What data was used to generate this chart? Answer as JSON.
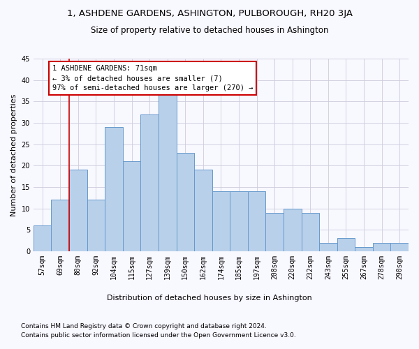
{
  "title": "1, ASHDENE GARDENS, ASHINGTON, PULBOROUGH, RH20 3JA",
  "subtitle": "Size of property relative to detached houses in Ashington",
  "xlabel_bottom": "Distribution of detached houses by size in Ashington",
  "ylabel": "Number of detached properties",
  "categories": [
    "57sqm",
    "69sqm",
    "80sqm",
    "92sqm",
    "104sqm",
    "115sqm",
    "127sqm",
    "139sqm",
    "150sqm",
    "162sqm",
    "174sqm",
    "185sqm",
    "197sqm",
    "208sqm",
    "220sqm",
    "232sqm",
    "243sqm",
    "255sqm",
    "267sqm",
    "278sqm",
    "290sqm"
  ],
  "values": [
    6,
    12,
    19,
    12,
    29,
    21,
    32,
    37,
    23,
    19,
    14,
    14,
    14,
    9,
    10,
    9,
    2,
    3,
    1,
    2,
    2
  ],
  "bar_color": "#b8d0ea",
  "bar_edge_color": "#6699cc",
  "annotation_text_line1": "1 ASHDENE GARDENS: 71sqm",
  "annotation_text_line2": "← 3% of detached houses are smaller (7)",
  "annotation_text_line3": "97% of semi-detached houses are larger (270) →",
  "annotation_box_color": "#ffffff",
  "annotation_box_edge_color": "#cc0000",
  "vline_color": "#cc0000",
  "ylim": [
    0,
    45
  ],
  "yticks": [
    0,
    5,
    10,
    15,
    20,
    25,
    30,
    35,
    40,
    45
  ],
  "footer_line1": "Contains HM Land Registry data © Crown copyright and database right 2024.",
  "footer_line2": "Contains public sector information licensed under the Open Government Licence v3.0.",
  "bg_color": "#f8f8ff",
  "grid_color": "#ccccdd",
  "title_fontsize": 9.5,
  "subtitle_fontsize": 8.5,
  "axis_label_fontsize": 8,
  "tick_fontsize": 7,
  "annotation_fontsize": 7.5,
  "footer_fontsize": 6.5
}
